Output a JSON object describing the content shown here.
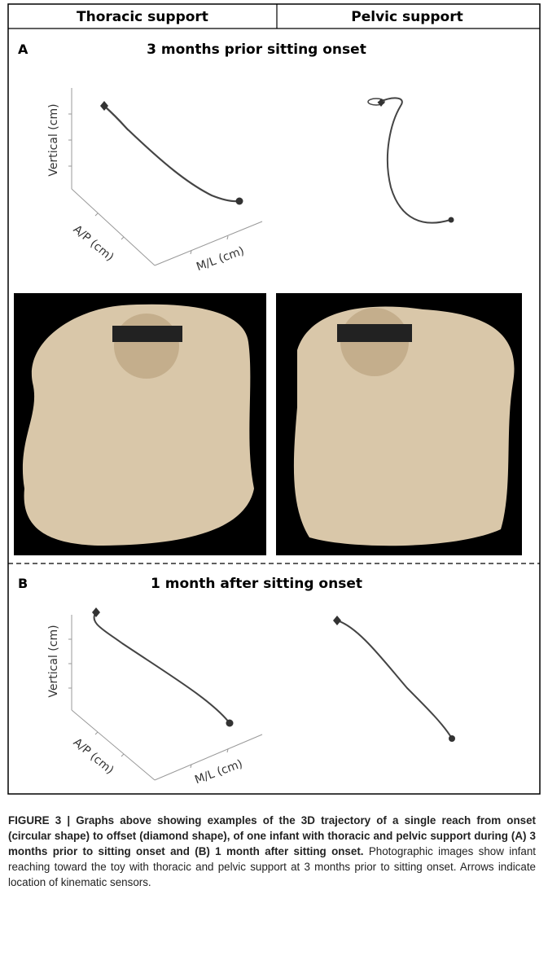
{
  "header": {
    "columns": [
      "Thoracic support",
      "Pelvic support"
    ]
  },
  "panels": [
    {
      "label": "A",
      "title": "3 months prior sitting onset",
      "axes": {
        "vertical": "Vertical (cm)",
        "ap": "A/P (cm)",
        "ml": "M/L (cm)"
      }
    },
    {
      "label": "B",
      "title": "1 month after sitting onset",
      "axes": {
        "vertical": "Vertical (cm)",
        "ap": "A/P (cm)",
        "ml": "M/L (cm)"
      }
    }
  ],
  "caption": {
    "bold": "FIGURE 3 | Graphs above showing examples of the 3D trajectory of a single reach from onset (circular shape) to offset (diamond shape), of one infant with thoracic and pelvic support during (A) 3 months prior to sitting onset and (B) 1 month after sitting onset.",
    "text": "Photographic images show infant reaching toward the toy with thoracic and pelvic support at 3 months prior to sitting onset. Arrows indicate location of kinematic sensors."
  }
}
